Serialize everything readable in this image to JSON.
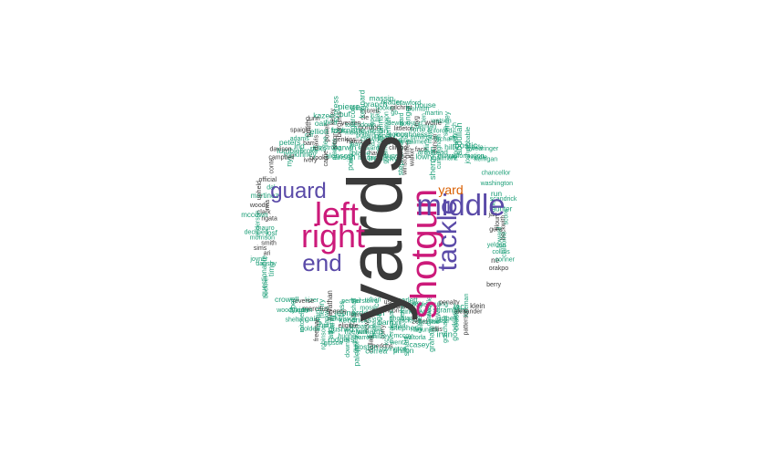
{
  "colors": {
    "dark": "#3a3a3a",
    "magenta": "#cc1a7a",
    "purple": "#5a4aa8",
    "orange": "#d95f02",
    "green": "#1b9e77"
  },
  "major_words": {
    "yards": "yards",
    "shotgun": "shotgun",
    "left": "left",
    "right": "right",
    "middle": "middle",
    "tackle": "tackle",
    "guard": "guard",
    "end": "end",
    "yard": "yard"
  },
  "small_words": [
    "trubisky",
    "winston",
    "mccain",
    "liuget",
    "point",
    "hayes",
    "urban",
    "stephenson",
    "plane",
    "use",
    "goldman",
    "hairston",
    "ansah",
    "walker",
    "scarlett",
    "edwards",
    "price",
    "clinton",
    "pennel",
    "morrow",
    "lowry",
    "randall",
    "simmons",
    "moss",
    "alonso",
    "griffen",
    "searcy",
    "hayward",
    "sherman",
    "mclendon",
    "hankins",
    "marshall",
    "barwin",
    "face",
    "bethel",
    "clowney",
    "dalton",
    "carrie",
    "bailey",
    "flowers",
    "bass",
    "harris",
    "armstead",
    "kamara",
    "replay",
    "bernard",
    "mariota",
    "palmer",
    "kirksey",
    "trevathan",
    "pullard",
    "gallman",
    "illegal",
    "brooks",
    "goings",
    "weddle",
    "leonard",
    "jenkins",
    "rollins",
    "gholston",
    "austin",
    "newton",
    "armstrong",
    "roughness",
    "pierce",
    "spence",
    "mckissic",
    "cunningham",
    "barron",
    "ivory",
    "coleman",
    "ruling",
    "kendricks",
    "simon",
    "tomlinson",
    "jackson",
    "henry",
    "gordon",
    "van",
    "thomas",
    "ricks",
    "littleton",
    "casillas",
    "williamson",
    "fournette",
    "carson",
    "david",
    "kizer",
    "collins",
    "penalty",
    "fitzpatrick",
    "lee",
    "forte",
    "zettel",
    "darkwa",
    "touchdown",
    "hill",
    "curry",
    "broke",
    "lewis",
    "rawls",
    "eligible",
    "cook",
    "maye",
    "stephens",
    "mercilus",
    "cooper",
    "murrayformation",
    "williams",
    "davis",
    "houston",
    "prosise",
    "kang",
    "vereen",
    "orchard",
    "rivera",
    "mckinney",
    "reverse",
    "mixon",
    "scrambles",
    "melvin",
    "powell",
    "siemian",
    "riley",
    "ingram",
    "cle",
    "josf",
    "reported",
    "whitley",
    "barr",
    "ward",
    "lawson",
    "pushed",
    "burgess",
    "enforced",
    "mccoy",
    "nyj",
    "jax",
    "min",
    "play",
    "lac",
    "ngata",
    "josh",
    "barrett",
    "elliott",
    "nyg",
    "ogunjobi",
    "hunt",
    "garcon",
    "smith",
    "chi",
    "kc",
    "ind",
    "gore",
    "bell",
    "gb",
    "jones",
    "mia",
    "hughes",
    "field",
    "timu",
    "wolfe",
    "walton",
    "miller",
    "gain",
    "injured",
    "foreman",
    "mauro",
    "bostic",
    "dallas",
    "car",
    "yeldon",
    "anger",
    "ellis",
    "dal",
    "atl",
    "buf",
    "ari",
    "sea",
    "wentz",
    "fumbles",
    "blount",
    "atkins",
    "hooker",
    "cousins",
    "clark",
    "huddle",
    "gurley",
    "oak",
    "ne",
    "ten",
    "la",
    "run",
    "freeman",
    "wilson",
    "morrison",
    "abdullah",
    "perkins",
    "adams",
    "howard",
    "crowell",
    "gilchrist",
    "godchaux",
    "martinez",
    "rodgers",
    "kelley",
    "dansby",
    "watson",
    "smart",
    "campbell",
    "hunter",
    "mitchell",
    "branch",
    "alexander",
    "anderson",
    "breida",
    "boston",
    "smith",
    "collins",
    "thornton",
    "graham",
    "official",
    "washington",
    "robinson",
    "pierre",
    "sims",
    "lynch",
    "covington",
    "peters",
    "beckwith",
    "woodyard",
    "reader",
    "goodson",
    "woods",
    "kerrigan",
    "downs",
    "kazee",
    "orakpo",
    "questionable",
    "martin",
    "casey",
    "conte",
    "scandrick",
    "golden",
    "kennard",
    "klein",
    "declined",
    "probable",
    "correa",
    "spaight",
    "claiborne",
    "crawford",
    "irvin",
    "upheld",
    "chancellor",
    "gipson",
    "cypress",
    "berry",
    "joyner",
    "finney",
    "philon",
    "davison",
    "score",
    "shelton",
    "massip",
    "patterson",
    "mccown",
    "swearinger",
    "palepoi",
    "dunn",
    "conner",
    "buckner",
    "house"
  ]
}
